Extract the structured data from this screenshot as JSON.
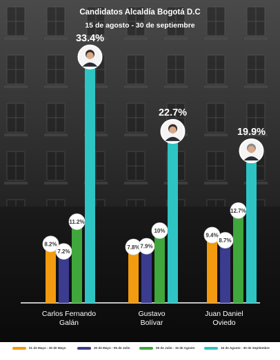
{
  "title": "Candidatos Alcaldía Bogotá D.C",
  "subtitle": "15 de agosto - 30 de septiembre",
  "colors": {
    "background_top": "#3a3a3a",
    "background_bottom": "#0d0d0d",
    "axis": "#ffffff",
    "label_bubble": "#ffffff",
    "label_text": "#333333",
    "top_label": "#ffffff"
  },
  "chart_data": {
    "type": "bar",
    "categories": [
      {
        "line1": "Carlos Fernando",
        "line2": "Galán"
      },
      {
        "line1": "Gustavo",
        "line2": "Bolívar"
      },
      {
        "line1": "Juan Daniel",
        "line2": "Oviedo"
      }
    ],
    "series": [
      {
        "name": "01 de Mayo - 30 de Mayo",
        "color": "#f29a10",
        "values": [
          8.2,
          7.8,
          9.4
        ],
        "labels": [
          "8.2%",
          "7.8%",
          "9.4%"
        ]
      },
      {
        "name": "30 de Mayo - 05 de Julio",
        "color": "#3b3b8f",
        "values": [
          7.2,
          7.9,
          8.7
        ],
        "labels": [
          "7.2%",
          "7.9%",
          "8.7%"
        ]
      },
      {
        "name": "05 de Julio - 15 de Agosto",
        "color": "#3fa73c",
        "values": [
          11.2,
          10,
          12.7
        ],
        "labels": [
          "11.2%",
          "10%",
          "12.7%"
        ]
      },
      {
        "name": "15 de Agosto - 30 de Septiembre",
        "color": "#2ec4c4",
        "values": [
          33.4,
          22.7,
          19.9
        ],
        "labels": [
          "33.4%",
          "22.7%",
          "19.9%"
        ]
      }
    ],
    "avatar_icons": [
      "candidate-photo-galan",
      "candidate-photo-bolivar",
      "candidate-photo-oviedo"
    ]
  }
}
